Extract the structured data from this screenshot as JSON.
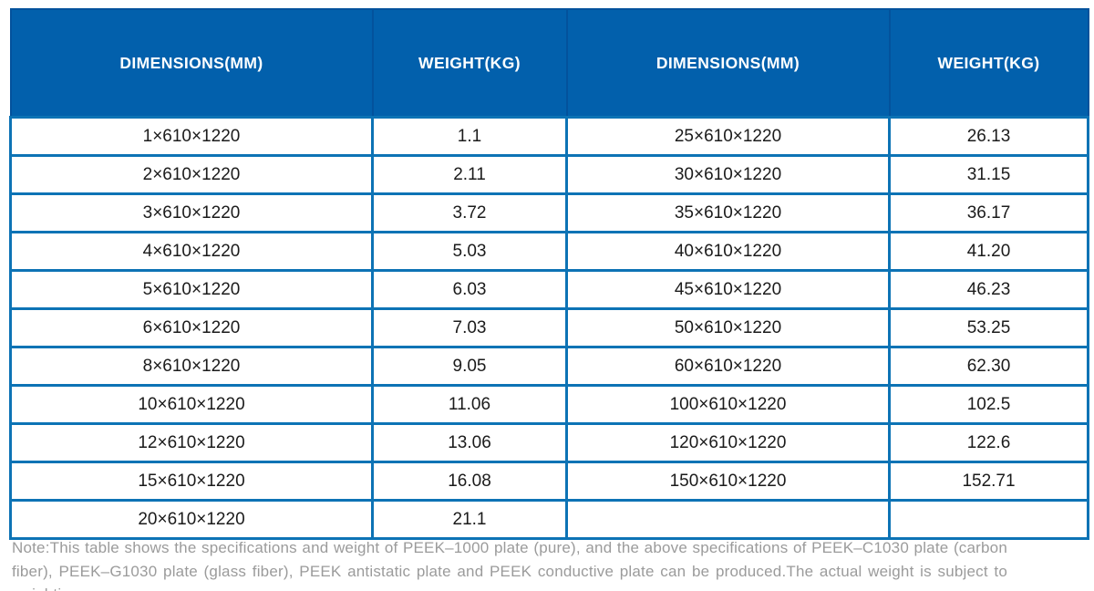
{
  "table": {
    "headers": [
      "DIMENSIONS(MM)",
      "WEIGHT(KG)",
      "DIMENSIONS(MM)",
      "WEIGHT(KG)"
    ],
    "rows": [
      [
        "1×610×1220",
        "1.1",
        "25×610×1220",
        "26.13"
      ],
      [
        "2×610×1220",
        "2.11",
        "30×610×1220",
        "31.15"
      ],
      [
        "3×610×1220",
        "3.72",
        "35×610×1220",
        "36.17"
      ],
      [
        "4×610×1220",
        "5.03",
        "40×610×1220",
        "41.20"
      ],
      [
        "5×610×1220",
        "6.03",
        "45×610×1220",
        "46.23"
      ],
      [
        "6×610×1220",
        "7.03",
        "50×610×1220",
        "53.25"
      ],
      [
        "8×610×1220",
        "9.05",
        "60×610×1220",
        "62.30"
      ],
      [
        "10×610×1220",
        "11.06",
        "100×610×1220",
        "102.5"
      ],
      [
        "12×610×1220",
        "13.06",
        "120×610×1220",
        "122.6"
      ],
      [
        "15×610×1220",
        "16.08",
        "150×610×1220",
        "152.71"
      ],
      [
        "20×610×1220",
        "21.1",
        "",
        ""
      ]
    ]
  },
  "note": "Note:This table shows the specifications and weight of PEEK–1000 plate (pure), and the above specifications of PEEK–C1030 plate (carbon fiber), PEEK–G1030 plate (glass fiber), PEEK antistatic plate and PEEK conductive plate can be produced.The actual weight is subject to weighting.",
  "colors": {
    "header_bg": "#0260ac",
    "header_divider": "#03529c",
    "grid_border": "#0d73b5",
    "cell_text": "#1b1b1b",
    "note_text": "#9b9b9b"
  }
}
